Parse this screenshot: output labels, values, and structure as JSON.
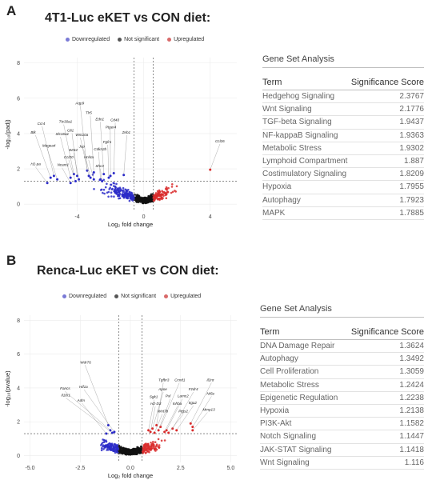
{
  "panels": [
    {
      "letter": "A",
      "title": "4T1-Luc  eKET vs CON diet:",
      "legend": [
        "Downregulated",
        "Not significant",
        "Upregulated"
      ],
      "gsa": {
        "title": "Gene Set Analysis",
        "col_term": "Term",
        "col_score": "Significance Score",
        "rows": [
          {
            "term": "Hedgehog Signaling",
            "score": "2.3767"
          },
          {
            "term": "Wnt Signaling",
            "score": "2.1776"
          },
          {
            "term": "TGF-beta Signaling",
            "score": "1.9437"
          },
          {
            "term": "NF-kappaB Signaling",
            "score": "1.9363"
          },
          {
            "term": "Metabolic Stress",
            "score": "1.9302"
          },
          {
            "term": "Lymphoid Compartment",
            "score": "1.887"
          },
          {
            "term": "Costimulatory Signaling",
            "score": "1.8209"
          },
          {
            "term": "Hypoxia",
            "score": "1.7955"
          },
          {
            "term": "Autophagy",
            "score": "1.7923"
          },
          {
            "term": "MAPK",
            "score": "1.7885"
          }
        ]
      }
    },
    {
      "letter": "B",
      "title": "Renca-Luc  eKET vs CON diet:",
      "legend": [
        "Downregulated",
        "Not significant",
        "Upregulated"
      ],
      "gsa": {
        "title": "Gene Set Analysis",
        "col_term": "Term",
        "col_score": "Significance Score",
        "rows": [
          {
            "term": "DNA Damage Repair",
            "score": "1.3624"
          },
          {
            "term": "Autophagy",
            "score": "1.3492"
          },
          {
            "term": "Cell Proliferation",
            "score": "1.3059"
          },
          {
            "term": "Metabolic Stress",
            "score": "1.2424"
          },
          {
            "term": "Epigenetic Regulation",
            "score": "1.2238"
          },
          {
            "term": "Hypoxia",
            "score": "1.2138"
          },
          {
            "term": "PI3K-Akt",
            "score": "1.1582"
          },
          {
            "term": "Notch Signaling",
            "score": "1.1447"
          },
          {
            "term": "JAK-STAT Signaling",
            "score": "1.1418"
          },
          {
            "term": "Wnt Signaling",
            "score": "1.116"
          }
        ]
      }
    }
  ],
  "colors": {
    "down": "#2b2bc8",
    "ns": "#111111",
    "up": "#d92b2b",
    "legend_down": "#7a7ad6",
    "legend_ns": "#555555",
    "legend_up": "#d96a6a"
  },
  "chart_data": [
    {
      "type": "scatter",
      "xlabel": "Log₂ fold change",
      "ylabel": "-log₁₀(padj)",
      "xlim": [
        -7.2,
        5.6
      ],
      "ylim": [
        -0.4,
        8.3
      ],
      "xticks": [
        -4,
        0,
        4
      ],
      "yticks": [
        0,
        2,
        4,
        6,
        8
      ],
      "vlines": [
        -0.58,
        0.58
      ],
      "hline": 1.3,
      "labels": [
        {
          "text": "Ccl26",
          "x": 4.0,
          "y": 1.95,
          "lx": 4.3,
          "ly": 3.5
        },
        {
          "text": "Zeb1",
          "x": -1.2,
          "y": 1.65,
          "lx": -1.3,
          "ly": 4.0
        },
        {
          "text": "Cd40",
          "x": -1.8,
          "y": 1.75,
          "lx": -2.0,
          "ly": 4.7
        },
        {
          "text": "Ptger4",
          "x": -2.0,
          "y": 1.6,
          "lx": -2.3,
          "ly": 4.3
        },
        {
          "text": "Fgfr1",
          "x": -2.1,
          "y": 1.5,
          "lx": -2.45,
          "ly": 3.45
        },
        {
          "text": "Edn1",
          "x": -2.4,
          "y": 1.7,
          "lx": -2.9,
          "ly": 4.75
        },
        {
          "text": "Tlr5",
          "x": -3.0,
          "y": 1.8,
          "lx": -3.5,
          "ly": 5.1
        },
        {
          "text": "Aqp9",
          "x": -3.4,
          "y": 1.9,
          "lx": -4.1,
          "ly": 5.65
        },
        {
          "text": "Cdkn2b",
          "x": -2.6,
          "y": 1.4,
          "lx": -3.0,
          "ly": 3.05
        },
        {
          "text": "Shc3",
          "x": -2.5,
          "y": 1.3,
          "lx": -2.9,
          "ly": 2.1
        },
        {
          "text": "Hnf4a",
          "x": -3.0,
          "y": 1.4,
          "lx": -3.6,
          "ly": 2.6
        },
        {
          "text": "Jup",
          "x": -3.2,
          "y": 1.5,
          "lx": -3.9,
          "ly": 3.2
        },
        {
          "text": "Wnt10a",
          "x": -3.3,
          "y": 1.6,
          "lx": -4.1,
          "ly": 3.85
        },
        {
          "text": "Gli1",
          "x": -4.0,
          "y": 1.6,
          "lx": -4.6,
          "ly": 4.1
        },
        {
          "text": "Ttc30a1",
          "x": -4.2,
          "y": 1.7,
          "lx": -5.1,
          "ly": 4.6
        },
        {
          "text": "Ccr4",
          "x": -5.4,
          "y": 1.6,
          "lx": -6.4,
          "ly": 4.5
        },
        {
          "text": "Blk",
          "x": -5.6,
          "y": 1.5,
          "lx": -6.8,
          "ly": 4.0
        },
        {
          "text": "Slc16a1",
          "x": -4.4,
          "y": 1.5,
          "lx": -5.3,
          "ly": 3.9
        },
        {
          "text": "Wnt4",
          "x": -3.9,
          "y": 1.4,
          "lx": -4.5,
          "ly": 3.0
        },
        {
          "text": "Magea4",
          "x": -5.2,
          "y": 1.4,
          "lx": -6.1,
          "ly": 3.25
        },
        {
          "text": "Ccl20",
          "x": -4.1,
          "y": 1.3,
          "lx": -4.8,
          "ly": 2.6
        },
        {
          "text": "Ncam1",
          "x": -4.4,
          "y": 1.2,
          "lx": -5.2,
          "ly": 2.15
        },
        {
          "text": "H2-pa",
          "x": -5.8,
          "y": 1.2,
          "lx": -6.8,
          "ly": 2.2
        }
      ]
    },
    {
      "type": "scatter",
      "xlabel": "Log₂ fold change",
      "ylabel": "-log₁₀(pvalue)",
      "xlim": [
        -5.3,
        5.3
      ],
      "ylim": [
        -0.4,
        8.3
      ],
      "xticks": [
        -5.0,
        -2.5,
        0.0,
        2.5,
        5.0
      ],
      "xtick_labels": [
        "-5.0",
        "-2.5",
        "0.0",
        "2.5",
        "5.0"
      ],
      "yticks": [
        0,
        2,
        4,
        6,
        8
      ],
      "vlines": [
        -0.58,
        0.58
      ],
      "hline": 1.3,
      "labels": [
        {
          "text": "Wdr76",
          "x": -1.1,
          "y": 1.8,
          "lx": -2.5,
          "ly": 5.45
        },
        {
          "text": "Fancs",
          "x": -1.0,
          "y": 1.5,
          "lx": -3.5,
          "ly": 3.9
        },
        {
          "text": "Hif1a",
          "x": -0.8,
          "y": 1.4,
          "lx": -2.55,
          "ly": 4.0
        },
        {
          "text": "Il18r1",
          "x": -0.9,
          "y": 1.35,
          "lx": -3.45,
          "ly": 3.5
        },
        {
          "text": "Adm",
          "x": -1.2,
          "y": 1.3,
          "lx": -2.65,
          "ly": 3.2
        },
        {
          "text": "Tgfbr3",
          "x": 1.3,
          "y": 1.8,
          "lx": 1.4,
          "ly": 4.4
        },
        {
          "text": "Ccnd1",
          "x": 1.5,
          "y": 1.7,
          "lx": 2.2,
          "ly": 4.4
        },
        {
          "text": "Il2rα",
          "x": 3.0,
          "y": 1.9,
          "lx": 3.8,
          "ly": 4.4
        },
        {
          "text": "Apoe",
          "x": 1.1,
          "y": 1.6,
          "lx": 1.4,
          "ly": 3.85
        },
        {
          "text": "Fzdr4",
          "x": 2.1,
          "y": 1.6,
          "lx": 2.9,
          "ly": 3.85
        },
        {
          "text": "Sgk1",
          "x": 0.9,
          "y": 1.5,
          "lx": 0.95,
          "ly": 3.4
        },
        {
          "text": "Pxl",
          "x": 1.4,
          "y": 1.5,
          "lx": 1.75,
          "ly": 3.45
        },
        {
          "text": "Lamc2",
          "x": 1.8,
          "y": 1.5,
          "lx": 2.35,
          "ly": 3.45
        },
        {
          "text": "Nt5e",
          "x": 3.1,
          "y": 1.7,
          "lx": 3.8,
          "ly": 3.6
        },
        {
          "text": "H2-D3",
          "x": 1.0,
          "y": 1.4,
          "lx": 1.0,
          "ly": 3.0
        },
        {
          "text": "Inhba",
          "x": 1.7,
          "y": 1.4,
          "lx": 2.1,
          "ly": 3.0
        },
        {
          "text": "Itga2",
          "x": 2.3,
          "y": 1.5,
          "lx": 2.9,
          "ly": 3.05
        },
        {
          "text": "Wnt7b",
          "x": 1.2,
          "y": 1.35,
          "lx": 1.35,
          "ly": 2.55
        },
        {
          "text": "Ptgs2",
          "x": 1.9,
          "y": 1.35,
          "lx": 2.4,
          "ly": 2.55
        },
        {
          "text": "Mmp13",
          "x": 3.1,
          "y": 1.5,
          "lx": 3.6,
          "ly": 2.65
        }
      ]
    }
  ]
}
